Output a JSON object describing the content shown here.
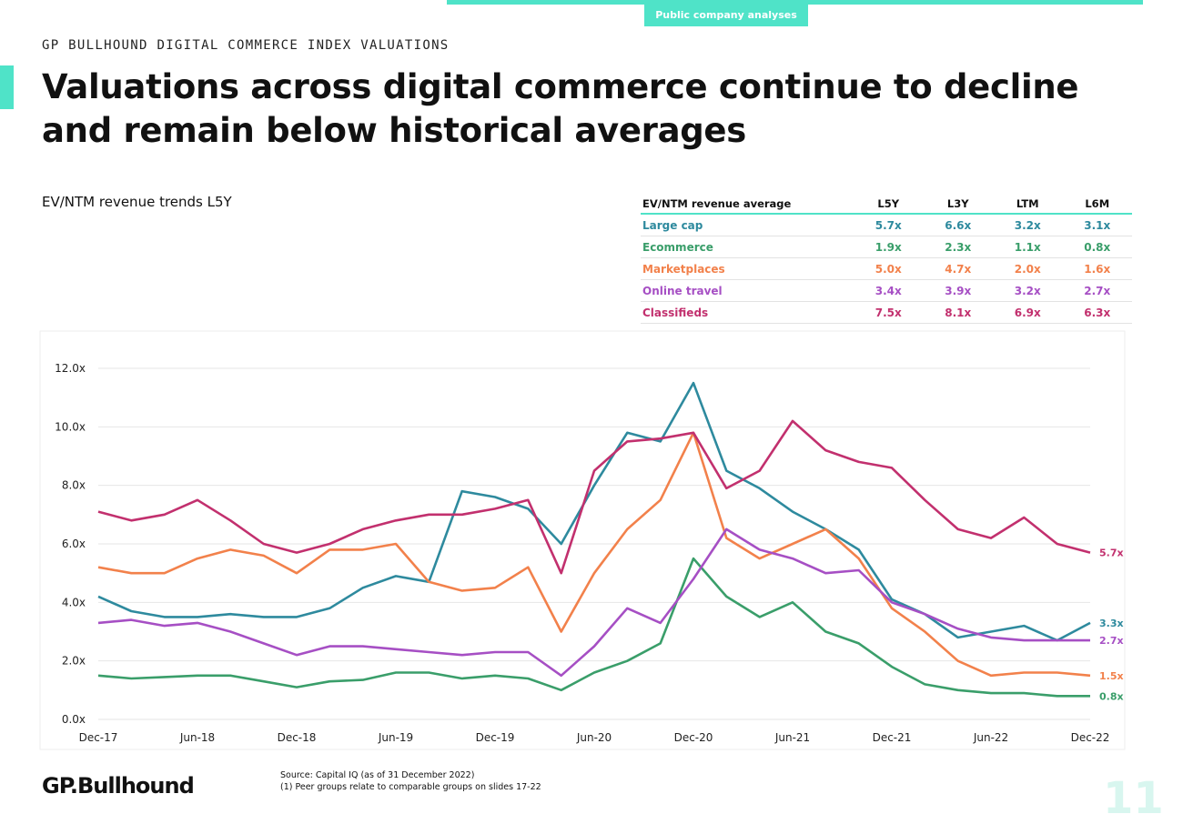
{
  "header": {
    "section_tag": "Public company analyses",
    "kicker": "GP BULLHOUND DIGITAL COMMERCE INDEX VALUATIONS",
    "headline": "Valuations across digital commerce continue to decline and remain below historical averages"
  },
  "chart_title": "EV/NTM revenue trends L5Y",
  "average_table": {
    "header": [
      "EV/NTM revenue average",
      "L5Y",
      "L3Y",
      "LTM",
      "L6M"
    ],
    "rows": [
      {
        "label": "Large cap",
        "color": "#2e8a9e",
        "values": [
          "5.7x",
          "6.6x",
          "3.2x",
          "3.1x"
        ]
      },
      {
        "label": "Ecommerce",
        "color": "#3a9e6a",
        "values": [
          "1.9x",
          "2.3x",
          "1.1x",
          "0.8x"
        ]
      },
      {
        "label": "Marketplaces",
        "color": "#f2814b",
        "values": [
          "5.0x",
          "4.7x",
          "2.0x",
          "1.6x"
        ]
      },
      {
        "label": "Online travel",
        "color": "#a64fc4",
        "values": [
          "3.4x",
          "3.9x",
          "3.2x",
          "2.7x"
        ]
      },
      {
        "label": "Classifieds",
        "color": "#c2306e",
        "values": [
          "7.5x",
          "8.1x",
          "6.9x",
          "6.3x"
        ]
      }
    ]
  },
  "chart_data": {
    "type": "line",
    "x": [
      "Dec-17",
      "Feb-18",
      "Apr-18",
      "Jun-18",
      "Aug-18",
      "Oct-18",
      "Dec-18",
      "Feb-19",
      "Apr-19",
      "Jun-19",
      "Aug-19",
      "Oct-19",
      "Dec-19",
      "Feb-20",
      "Apr-20",
      "Jun-20",
      "Aug-20",
      "Oct-20",
      "Dec-20",
      "Feb-21",
      "Apr-21",
      "Jun-21",
      "Aug-21",
      "Oct-21",
      "Dec-21",
      "Feb-22",
      "Apr-22",
      "Jun-22",
      "Aug-22",
      "Oct-22",
      "Dec-22"
    ],
    "x_tick_labels": [
      "Dec-17",
      "Jun-18",
      "Dec-18",
      "Jun-19",
      "Dec-19",
      "Jun-20",
      "Dec-20",
      "Jun-21",
      "Dec-21",
      "Jun-22",
      "Dec-22"
    ],
    "y_tick_labels": [
      "0.0x",
      "2.0x",
      "4.0x",
      "6.0x",
      "8.0x",
      "10.0x",
      "12.0x"
    ],
    "ylim": [
      0,
      12
    ],
    "grid": true,
    "series": [
      {
        "name": "Large cap",
        "color": "#2e8a9e",
        "end_label": "3.3x",
        "values": [
          4.2,
          3.7,
          3.5,
          3.5,
          3.6,
          3.5,
          3.5,
          3.8,
          4.5,
          4.9,
          4.7,
          7.8,
          7.6,
          7.2,
          6.0,
          8.0,
          9.8,
          9.5,
          11.5,
          8.5,
          7.9,
          7.1,
          6.5,
          5.8,
          4.1,
          3.6,
          2.8,
          3.0,
          3.2,
          2.7,
          3.3
        ]
      },
      {
        "name": "Ecommerce",
        "color": "#3a9e6a",
        "end_label": "0.8x",
        "values": [
          1.5,
          1.4,
          1.45,
          1.5,
          1.5,
          1.3,
          1.1,
          1.3,
          1.35,
          1.6,
          1.6,
          1.4,
          1.5,
          1.4,
          1.0,
          1.6,
          2.0,
          2.6,
          5.5,
          4.2,
          3.5,
          4.0,
          3.0,
          2.6,
          1.8,
          1.2,
          1.0,
          0.9,
          0.9,
          0.8,
          0.8
        ]
      },
      {
        "name": "Marketplaces",
        "color": "#f2814b",
        "end_label": "1.5x",
        "values": [
          5.2,
          5.0,
          5.0,
          5.5,
          5.8,
          5.6,
          5.0,
          5.8,
          5.8,
          6.0,
          4.7,
          4.4,
          4.5,
          5.2,
          3.0,
          5.0,
          6.5,
          7.5,
          9.8,
          6.2,
          5.5,
          6.0,
          6.5,
          5.5,
          3.8,
          3.0,
          2.0,
          1.5,
          1.6,
          1.6,
          1.5
        ]
      },
      {
        "name": "Online travel",
        "color": "#a64fc4",
        "end_label": "2.7x",
        "values": [
          3.3,
          3.4,
          3.2,
          3.3,
          3.0,
          2.6,
          2.2,
          2.5,
          2.5,
          2.4,
          2.3,
          2.2,
          2.3,
          2.3,
          1.5,
          2.5,
          3.8,
          3.3,
          4.8,
          6.5,
          5.8,
          5.5,
          5.0,
          5.1,
          4.0,
          3.6,
          3.1,
          2.8,
          2.7,
          2.7,
          2.7
        ]
      },
      {
        "name": "Classifieds",
        "color": "#c2306e",
        "end_label": "5.7x",
        "values": [
          7.1,
          6.8,
          7.0,
          7.5,
          6.8,
          6.0,
          5.7,
          6.0,
          6.5,
          6.8,
          7.0,
          7.0,
          7.2,
          7.5,
          5.0,
          8.5,
          9.5,
          9.6,
          9.8,
          7.9,
          8.5,
          10.2,
          9.2,
          8.8,
          8.6,
          7.5,
          6.5,
          6.2,
          6.9,
          6.0,
          5.7
        ]
      }
    ]
  },
  "footer": {
    "logo": "GP.Bullhound",
    "source_line1": "Source: Capital IQ (as of 31 December 2022)",
    "source_line2": "(1) Peer groups relate to comparable groups on slides 17-22",
    "page_number": "11"
  }
}
